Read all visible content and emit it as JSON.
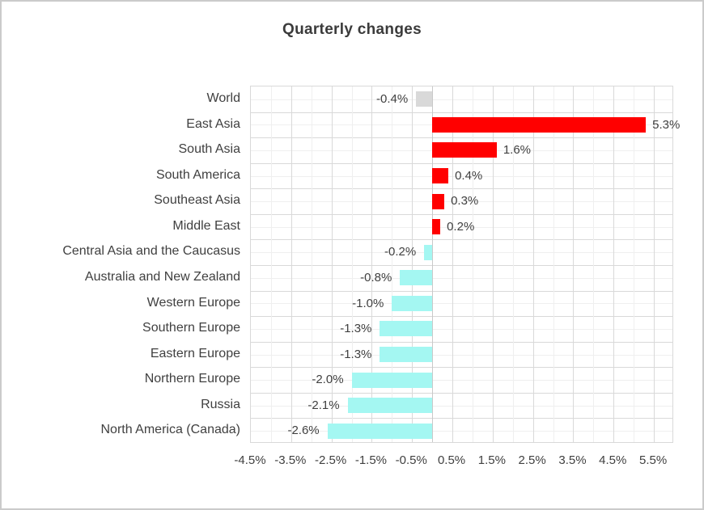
{
  "colors": {
    "red": "#ff0000",
    "cyan": "#a4f7f2",
    "gray": "#d9d9d9",
    "grid_major": "#d9d9d9",
    "grid_minor": "#efefef",
    "text": "#404040"
  },
  "chart_data": {
    "type": "bar",
    "orientation": "horizontal",
    "title": "Quarterly changes",
    "categories": [
      "World",
      "East Asia",
      "South Asia",
      "South America",
      "Southeast Asia",
      "Middle East",
      "Central Asia and the Caucasus",
      "Australia and New Zealand",
      "Western Europe",
      "Southern Europe",
      "Eastern Europe",
      "Northern Europe",
      "Russia",
      "North America (Canada)"
    ],
    "values": [
      -0.4,
      5.3,
      1.6,
      0.4,
      0.3,
      0.2,
      -0.2,
      -0.8,
      -1.0,
      -1.3,
      -1.3,
      -2.0,
      -2.1,
      -2.6
    ],
    "data_labels": [
      "-0.4%",
      "5.3%",
      "1.6%",
      "0.4%",
      "0.3%",
      "0.2%",
      "-0.2%",
      "-0.8%",
      "-1.0%",
      "-1.3%",
      "-1.3%",
      "-2.0%",
      "-2.1%",
      "-2.6%"
    ],
    "bar_colors": [
      "gray",
      "red",
      "red",
      "red",
      "red",
      "red",
      "cyan",
      "cyan",
      "cyan",
      "cyan",
      "cyan",
      "cyan",
      "cyan",
      "cyan"
    ],
    "xlabel": "",
    "ylabel": "",
    "axis": {
      "min": -4.5,
      "max": 6.0,
      "minor_step": 0.5,
      "tick_step": 1.0,
      "tick_values": [
        -4.5,
        -3.5,
        -2.5,
        -1.5,
        -0.5,
        0.5,
        1.5,
        2.5,
        3.5,
        4.5,
        5.5
      ],
      "tick_labels": [
        "-4.5%",
        "-3.5%",
        "-2.5%",
        "-1.5%",
        "-0.5%",
        "0.5%",
        "1.5%",
        "2.5%",
        "3.5%",
        "4.5%",
        "5.5%"
      ]
    },
    "grid": true,
    "legend": false
  }
}
